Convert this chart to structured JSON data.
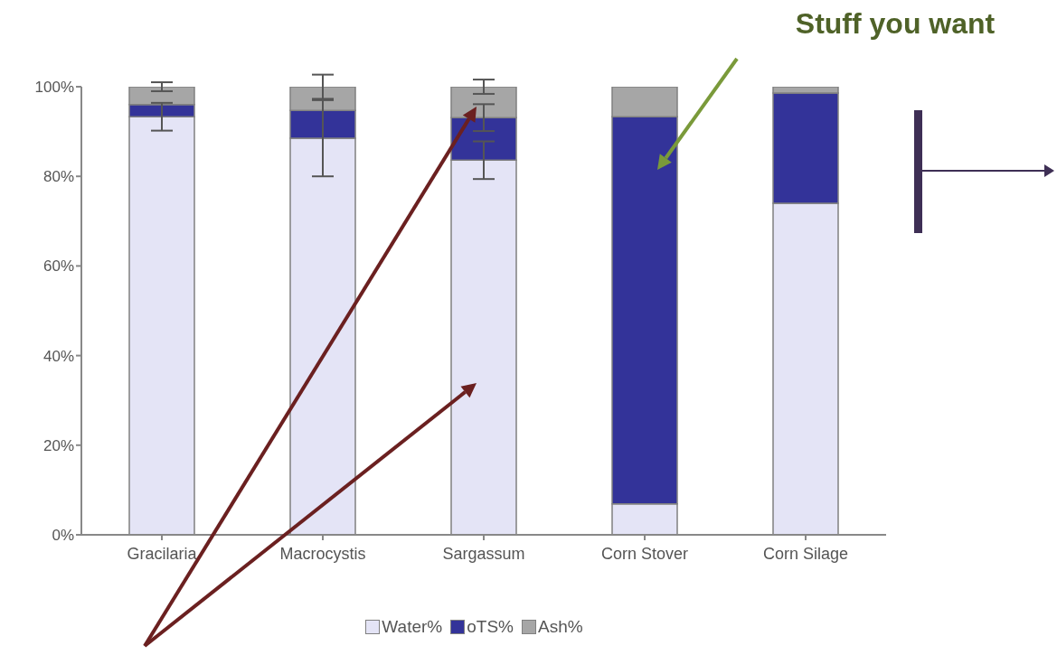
{
  "chart_data": {
    "type": "bar",
    "stacked": true,
    "categories": [
      "Gracilaria",
      "Macrocystis",
      "Sargassum",
      "Corn Stover",
      "Corn Silage"
    ],
    "series": [
      {
        "name": "Water%",
        "color": "#e4e4f6",
        "values": [
          93.3,
          88.5,
          83.6,
          6.9,
          74.0
        ],
        "errors": [
          3.1,
          8.5,
          4.2,
          null,
          null
        ]
      },
      {
        "name": "oTS%",
        "color": "#333399",
        "values": [
          2.7,
          6.2,
          9.5,
          86.4,
          24.6
        ],
        "errors": [
          null,
          null,
          3.0,
          null,
          null
        ]
      },
      {
        "name": "Ash%",
        "color": "#a6a6a6",
        "values": [
          4.0,
          5.3,
          6.9,
          6.7,
          1.4
        ],
        "errors": [
          1.0,
          2.7,
          1.6,
          null,
          null
        ]
      }
    ],
    "ylim": [
      0,
      100
    ],
    "yticks": [
      {
        "value": 0,
        "label": "0%"
      },
      {
        "value": 20,
        "label": "20%"
      },
      {
        "value": 40,
        "label": "40%"
      },
      {
        "value": 60,
        "label": "60%"
      },
      {
        "value": 80,
        "label": "80%"
      },
      {
        "value": 100,
        "label": "100%"
      }
    ],
    "grid": false,
    "legend": "bottom",
    "annotations": [
      "Stuff you want"
    ]
  }
}
